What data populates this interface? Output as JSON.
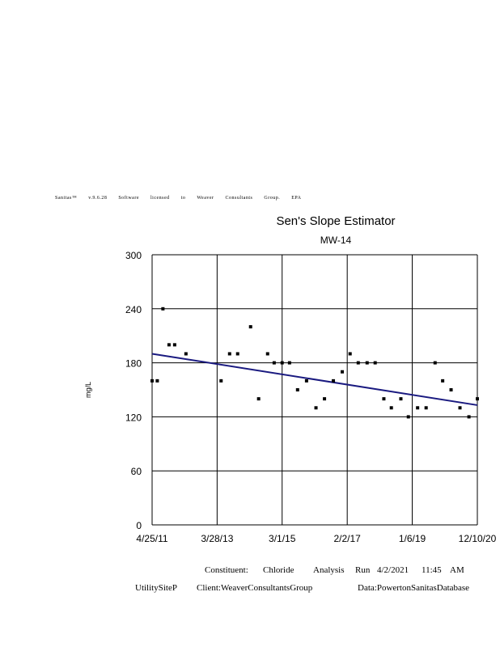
{
  "license": {
    "words": [
      "Sanitas™",
      "v.9.6.28",
      "Software",
      "licensed",
      "to",
      "Weaver",
      "Consultants",
      "Group.",
      "EPA"
    ]
  },
  "footer": {
    "constituent_label": "Constituent:",
    "constituent_value": "Chloride",
    "analysis_label": "Analysis",
    "run_label": "Run",
    "run_date": "4/2/2021",
    "run_time": "11:45",
    "run_ampm": "AM",
    "site": "UtilitySiteP",
    "client": "Client:WeaverConsultantsGroup",
    "data_source": "Data:PowertonSanitasDatabase"
  },
  "colors": {
    "trend_line": "#1a1a80",
    "points": "#000000",
    "grid": "#000000"
  },
  "chart_data": {
    "type": "scatter",
    "title": "Sen's Slope Estimator",
    "subtitle": "MW-14",
    "ylabel": "mg/L",
    "xlabel": "",
    "ylim": [
      0,
      300
    ],
    "yticks": [
      0,
      60,
      120,
      180,
      240,
      300
    ],
    "xlim": [
      "2011-04-25",
      "2020-12-10"
    ],
    "xticks": [
      "4/25/11",
      "3/28/13",
      "3/1/15",
      "2/2/17",
      "1/6/19",
      "12/10/20"
    ],
    "xtick_dates": [
      "2011-04-25",
      "2013-03-28",
      "2015-03-01",
      "2017-02-02",
      "2019-01-06",
      "2020-12-10"
    ],
    "grid": true,
    "points": [
      {
        "x": "2011-04-25",
        "y": 160
      },
      {
        "x": "2011-06-20",
        "y": 160
      },
      {
        "x": "2011-08-20",
        "y": 240
      },
      {
        "x": "2011-10-25",
        "y": 200
      },
      {
        "x": "2011-12-25",
        "y": 200
      },
      {
        "x": "2012-04-25",
        "y": 190
      },
      {
        "x": "2013-05-10",
        "y": 160
      },
      {
        "x": "2013-08-10",
        "y": 190
      },
      {
        "x": "2013-11-05",
        "y": 190
      },
      {
        "x": "2014-03-25",
        "y": 220
      },
      {
        "x": "2014-06-20",
        "y": 140
      },
      {
        "x": "2014-09-25",
        "y": 190
      },
      {
        "x": "2014-12-05",
        "y": 180
      },
      {
        "x": "2015-03-01",
        "y": 180
      },
      {
        "x": "2015-05-20",
        "y": 180
      },
      {
        "x": "2015-08-15",
        "y": 150
      },
      {
        "x": "2015-11-20",
        "y": 160
      },
      {
        "x": "2016-03-01",
        "y": 130
      },
      {
        "x": "2016-06-01",
        "y": 140
      },
      {
        "x": "2016-09-05",
        "y": 160
      },
      {
        "x": "2016-12-10",
        "y": 170
      },
      {
        "x": "2017-03-05",
        "y": 190
      },
      {
        "x": "2017-06-01",
        "y": 180
      },
      {
        "x": "2017-09-05",
        "y": 180
      },
      {
        "x": "2017-12-01",
        "y": 180
      },
      {
        "x": "2018-03-05",
        "y": 140
      },
      {
        "x": "2018-05-25",
        "y": 130
      },
      {
        "x": "2018-09-05",
        "y": 140
      },
      {
        "x": "2018-11-25",
        "y": 120
      },
      {
        "x": "2019-03-05",
        "y": 130
      },
      {
        "x": "2019-06-05",
        "y": 130
      },
      {
        "x": "2019-09-10",
        "y": 180
      },
      {
        "x": "2019-12-01",
        "y": 160
      },
      {
        "x": "2020-03-01",
        "y": 150
      },
      {
        "x": "2020-06-05",
        "y": 130
      },
      {
        "x": "2020-09-10",
        "y": 120
      },
      {
        "x": "2020-12-10",
        "y": 140
      }
    ],
    "trend_line": {
      "start": {
        "x": "2011-04-25",
        "y": 190
      },
      "end": {
        "x": "2020-12-10",
        "y": 133
      }
    }
  }
}
